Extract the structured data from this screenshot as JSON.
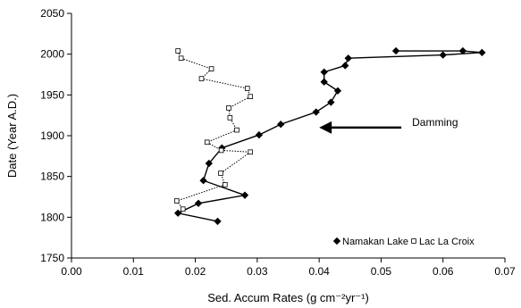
{
  "chart_data": {
    "type": "scatter",
    "xlabel": "Sed. Accum Rates (g cm⁻²yr⁻¹)",
    "ylabel": "Date (Year A.D.)",
    "xlim": [
      0,
      0.07
    ],
    "ylim": [
      1750,
      2050
    ],
    "xticks": [
      "0.00",
      "0.01",
      "0.02",
      "0.03",
      "0.04",
      "0.05",
      "0.06",
      "0.07"
    ],
    "yticks": [
      "1750",
      "1800",
      "1850",
      "1900",
      "1950",
      "2000",
      "2050"
    ],
    "grid": false,
    "legend_position": "bottom-right",
    "series": [
      {
        "name": "Namakan Lake",
        "marker": "diamond",
        "line": "solid",
        "color": "#000000",
        "points": [
          [
            0.0524,
            2004
          ],
          [
            0.0632,
            2004
          ],
          [
            0.0663,
            2002
          ],
          [
            0.06,
            1999
          ],
          [
            0.0447,
            1995
          ],
          [
            0.0442,
            1986
          ],
          [
            0.0408,
            1978
          ],
          [
            0.0408,
            1966
          ],
          [
            0.043,
            1955
          ],
          [
            0.0419,
            1941
          ],
          [
            0.0395,
            1929
          ],
          [
            0.0338,
            1914
          ],
          [
            0.0303,
            1901
          ],
          [
            0.0243,
            1885
          ],
          [
            0.0222,
            1866
          ],
          [
            0.0213,
            1845
          ],
          [
            0.028,
            1827
          ],
          [
            0.0205,
            1817
          ],
          [
            0.0172,
            1805
          ],
          [
            0.0236,
            1795
          ]
        ]
      },
      {
        "name": "Lac La Croix",
        "marker": "square-open",
        "line": "dotted",
        "color": "#000000",
        "points": [
          [
            0.0172,
            2004
          ],
          [
            0.0177,
            1995
          ],
          [
            0.0226,
            1982
          ],
          [
            0.021,
            1970
          ],
          [
            0.0284,
            1958
          ],
          [
            0.0289,
            1948
          ],
          [
            0.0254,
            1934
          ],
          [
            0.0256,
            1922
          ],
          [
            0.0267,
            1907
          ],
          [
            0.0219,
            1892
          ],
          [
            0.0242,
            1882
          ],
          [
            0.0289,
            1880
          ],
          [
            0.0241,
            1854
          ],
          [
            0.0248,
            1840
          ],
          [
            0.017,
            1820
          ],
          [
            0.018,
            1810
          ]
        ]
      }
    ],
    "annotations": [
      {
        "text": "Damming",
        "arrow_to": [
          0.04,
          1910
        ]
      }
    ]
  }
}
